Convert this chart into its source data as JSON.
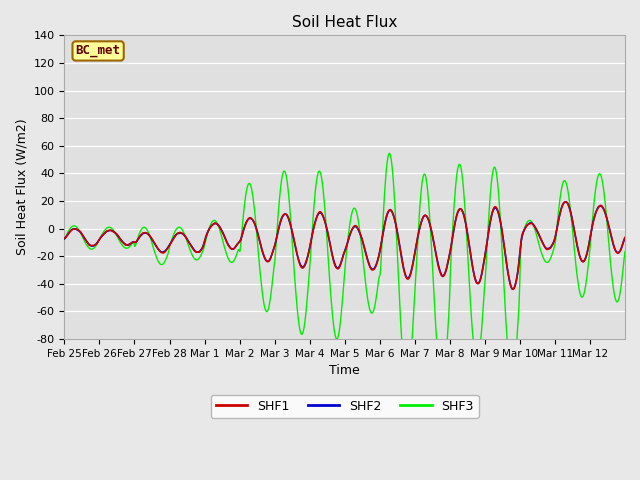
{
  "title": "Soil Heat Flux",
  "xlabel": "Time",
  "ylabel": "Soil Heat Flux (W/m2)",
  "ylim": [
    -80,
    140
  ],
  "yticks": [
    -80,
    -60,
    -40,
    -20,
    0,
    20,
    40,
    60,
    80,
    100,
    120,
    140
  ],
  "fig_bg_color": "#e8e8e8",
  "plot_bg_color": "#e0e0e0",
  "shf1_color": "#cc0000",
  "shf2_color": "#0000cc",
  "shf3_color": "#00ee00",
  "legend_label": "BC_met",
  "series_labels": [
    "SHF1",
    "SHF2",
    "SHF3"
  ],
  "xtick_labels": [
    "Feb 25",
    "Feb 26",
    "Feb 27",
    "Feb 28",
    "Mar 1",
    "Mar 2",
    "Mar 3",
    "Mar 4",
    "Mar 5",
    "Mar 6",
    "Mar 7",
    "Mar 8",
    "Mar 9",
    "Mar 10",
    "Mar 11",
    "Mar 12"
  ],
  "n_days": 16,
  "pts_per_day": 48
}
